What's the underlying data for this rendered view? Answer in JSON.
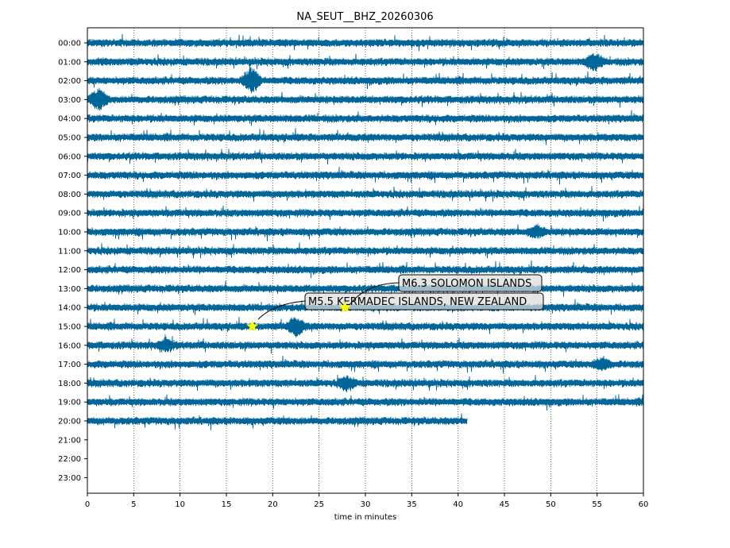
{
  "chart_data": {
    "type": "line",
    "title": "NA_SEUT__BHZ_20260306",
    "xlabel": "time in minutes",
    "ylabel": "",
    "xlim": [
      0,
      60
    ],
    "x_ticks": [
      0,
      5,
      10,
      15,
      20,
      25,
      30,
      35,
      40,
      45,
      50,
      55,
      60
    ],
    "grid": "vertical dotted lines at each x tick",
    "trace_color": "#006699",
    "rows": [
      "00:00",
      "01:00",
      "02:00",
      "03:00",
      "04:00",
      "05:00",
      "06:00",
      "07:00",
      "08:00",
      "09:00",
      "10:00",
      "11:00",
      "12:00",
      "13:00",
      "14:00",
      "15:00",
      "16:00",
      "17:00",
      "18:00",
      "19:00",
      "20:00",
      "21:00",
      "22:00",
      "23:00"
    ],
    "recorded_rows": 21,
    "last_row_end_minute": 41,
    "events": [
      {
        "label": "M5.5 KERMADEC ISLANDS, NEW ZEALAND",
        "row": "15:00",
        "minute": 17.8,
        "marker_color": "#ffff00"
      },
      {
        "label": "M6.3 SOLOMON ISLANDS",
        "row": "14:00",
        "minute": 27.8,
        "marker_color": "#ffff00"
      }
    ]
  }
}
